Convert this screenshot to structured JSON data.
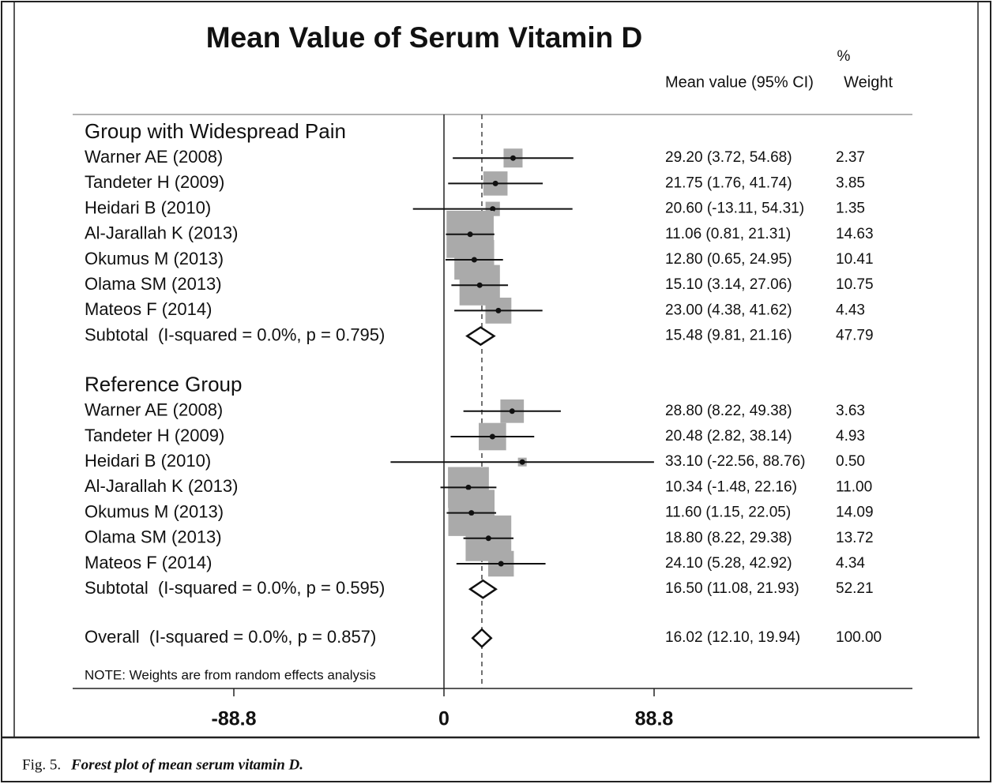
{
  "chart_data": {
    "type": "forest",
    "title": "Mean Value of Serum Vitamin D",
    "percent_header": "%",
    "estimate_header": "Mean value (95% CI)",
    "weight_header": "Weight",
    "xlim": [
      -88.8,
      88.8
    ],
    "xticks": [
      -88.8,
      0,
      88.8
    ],
    "groups": [
      {
        "name": "Group with Widespread Pain",
        "studies": [
          {
            "name": "Warner AE (2008)",
            "mean": 29.2,
            "lower": 3.72,
            "upper": 54.68,
            "label": "29.20 (3.72, 54.68)",
            "weight": 2.37
          },
          {
            "name": "Tandeter H (2009)",
            "mean": 21.75,
            "lower": 1.76,
            "upper": 41.74,
            "label": "21.75 (1.76, 41.74)",
            "weight": 3.85
          },
          {
            "name": "Heidari B (2010)",
            "mean": 20.6,
            "lower": -13.11,
            "upper": 54.31,
            "label": "20.60 (-13.11, 54.31)",
            "weight": 1.35
          },
          {
            "name": "Al-Jarallah K (2013)",
            "mean": 11.06,
            "lower": 0.81,
            "upper": 21.31,
            "label": "11.06 (0.81, 21.31)",
            "weight": 14.63
          },
          {
            "name": "Okumus M (2013)",
            "mean": 12.8,
            "lower": 0.65,
            "upper": 24.95,
            "label": "12.80 (0.65, 24.95)",
            "weight": 10.41
          },
          {
            "name": "Olama SM (2013)",
            "mean": 15.1,
            "lower": 3.14,
            "upper": 27.06,
            "label": "15.10 (3.14, 27.06)",
            "weight": 10.75
          },
          {
            "name": "Mateos F (2014)",
            "mean": 23.0,
            "lower": 4.38,
            "upper": 41.62,
            "label": "23.00 (4.38, 41.62)",
            "weight": 4.43
          }
        ],
        "subtotal": {
          "name": "Subtotal  (I-squared = 0.0%, p = 0.795)",
          "mean": 15.48,
          "lower": 9.81,
          "upper": 21.16,
          "label": "15.48 (9.81, 21.16)",
          "weight": 47.79
        }
      },
      {
        "name": "Reference Group",
        "studies": [
          {
            "name": "Warner AE (2008)",
            "mean": 28.8,
            "lower": 8.22,
            "upper": 49.38,
            "label": "28.80 (8.22, 49.38)",
            "weight": 3.63
          },
          {
            "name": "Tandeter H (2009)",
            "mean": 20.48,
            "lower": 2.82,
            "upper": 38.14,
            "label": "20.48 (2.82, 38.14)",
            "weight": 4.93
          },
          {
            "name": "Heidari B (2010)",
            "mean": 33.1,
            "lower": -22.56,
            "upper": 88.76,
            "label": "33.10 (-22.56, 88.76)",
            "weight": 0.5,
            "weight_label": "0.50"
          },
          {
            "name": "Al-Jarallah K (2013)",
            "mean": 10.34,
            "lower": -1.48,
            "upper": 22.16,
            "label": "10.34 (-1.48, 22.16)",
            "weight": 11.0,
            "weight_label": "11.00"
          },
          {
            "name": "Okumus M (2013)",
            "mean": 11.6,
            "lower": 1.15,
            "upper": 22.05,
            "label": "11.60 (1.15, 22.05)",
            "weight": 14.09
          },
          {
            "name": "Olama SM (2013)",
            "mean": 18.8,
            "lower": 8.22,
            "upper": 29.38,
            "label": "18.80 (8.22, 29.38)",
            "weight": 13.72
          },
          {
            "name": "Mateos F (2014)",
            "mean": 24.1,
            "lower": 5.28,
            "upper": 42.92,
            "label": "24.10 (5.28, 42.92)",
            "weight": 4.34
          }
        ],
        "subtotal": {
          "name": "Subtotal  (I-squared = 0.0%, p = 0.595)",
          "mean": 16.5,
          "lower": 11.08,
          "upper": 21.93,
          "label": "16.50 (11.08, 21.93)",
          "weight": 52.21
        }
      }
    ],
    "overall": {
      "name": "Overall  (I-squared = 0.0%, p = 0.857)",
      "mean": 16.02,
      "lower": 12.1,
      "upper": 19.94,
      "label": "16.02 (12.10, 19.94)",
      "weight": 100,
      "weight_label": "100.00"
    },
    "note": "NOTE: Weights are from random effects analysis",
    "caption": {
      "label": "Fig. 5.",
      "text": "Forest plot of mean serum vitamin D."
    }
  }
}
